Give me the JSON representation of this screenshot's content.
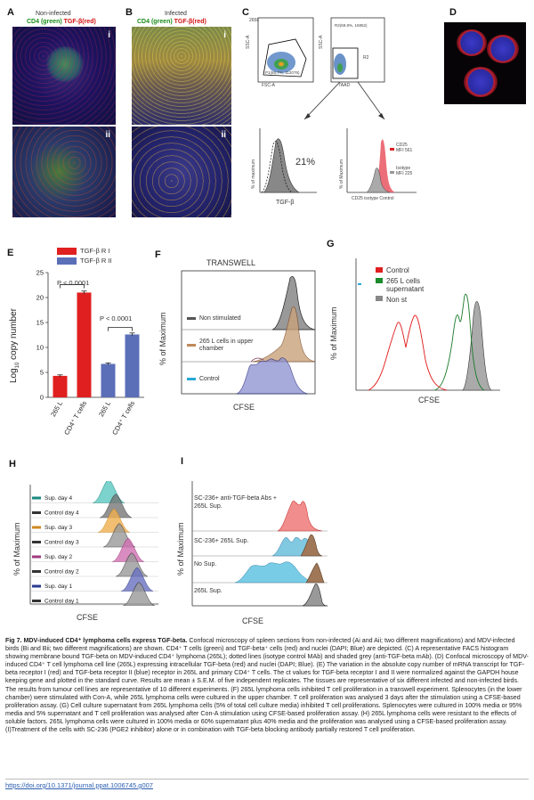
{
  "panels": {
    "A": {
      "letter": "A",
      "title": "Non-infected",
      "legend_cd4": "CD4 (green)",
      "legend_tgf": "TGF-β(red)",
      "sub_i": "i",
      "sub_ii": "ii"
    },
    "B": {
      "letter": "B",
      "title": "Infected",
      "legend_cd4": "CD4 (green)",
      "legend_tgf": "TGF-β(red)",
      "sub_i": "i",
      "sub_ii": "ii"
    },
    "C": {
      "letter": "C",
      "dot1_label": "265L",
      "dot1_y": "SSC-A",
      "dot1_x": "FSC-A",
      "dot1_gate": "P1(65.7%, 112076)",
      "dot2_gate": "R2(69.8%, 16852)",
      "dot2_gate_name": "R2",
      "dot2_y": "SSC-A",
      "dot2_x": "7AAD",
      "hist1_ylabel": "% of maximum",
      "hist1_xlabel": "TGF-β",
      "hist1_pct": "21%",
      "hist2_ylabel": "% of Maximum",
      "hist2_xlabel": "CD25 isotype Control",
      "hist2_leg1": "CD25",
      "hist2_leg1b": "MFI 561",
      "hist2_leg2": "Isotype",
      "hist2_leg2b": "MFI 225"
    },
    "D": {
      "letter": "D"
    },
    "E": {
      "letter": "E",
      "legend": [
        "TGF-β R I",
        "TGF-β R II"
      ],
      "ylabel_a": "Log",
      "ylabel_sub": "10",
      "ylabel_b": " copy  number",
      "pval1": "P < 0.0001",
      "pval2": "P < 0.0001"
    },
    "F": {
      "letter": "F",
      "title": "TRANSWELL",
      "ylabel": "% of Maximum",
      "xlabel": "CFSE",
      "legend": [
        "Non stimulated",
        "265 L cells in upper chamber",
        "Control"
      ]
    },
    "G": {
      "letter": "G",
      "ylabel": "% of Maximum",
      "xlabel": "CFSE",
      "legend": [
        "Control",
        "265 L cells supernatant",
        "Non st"
      ]
    },
    "H": {
      "letter": "H",
      "ylabel": "% of Maximum",
      "xlabel": "CFSE",
      "rows": [
        "Sup. day 4",
        "Control day 4",
        "Sup. day 3",
        "Control day 3",
        "Sup. day 2",
        "Control day 2",
        "Sup. day 1",
        "Control day 1"
      ]
    },
    "I": {
      "letter": "I",
      "ylabel": "% of Maximum",
      "xlabel": "CFSE",
      "rows": [
        "SC-236+ anti-TGF-beta Abs + 265L Sup.",
        "SC-236+ 265L Sup.",
        "No Sup.",
        "265L Sup."
      ]
    }
  },
  "chart_data": {
    "type": "bar",
    "categories": [
      "265 L",
      "CD4⁺ T cells",
      "265 L",
      "CD4⁺ T cells"
    ],
    "series": [
      {
        "name": "TGF-β R I",
        "values": [
          4.3,
          21.0,
          null,
          null
        ],
        "errors": [
          0.2,
          0.3,
          null,
          null
        ],
        "color": "#e02020"
      },
      {
        "name": "TGF-β R II",
        "values": [
          null,
          null,
          6.7,
          12.6
        ],
        "errors": [
          null,
          null,
          0.2,
          0.3
        ],
        "color": "#5b6fb8"
      }
    ],
    "yticks": [
      0,
      5,
      10,
      15,
      20,
      25
    ],
    "ylim": [
      0,
      25
    ],
    "ylabel": "Log10 copy number",
    "title": ""
  },
  "caption": {
    "title": "Fig 7. MDV-induced CD4⁺ lymphoma cells express TGF-beta.",
    "body": "Confocal microscopy of spleen sections from non-infected (Ai and Aii; two different magnifications) and MDV-infected birds (Bi and Bii; two different magnifications) are shown. CD4⁺ T cells (green) and TGF-beta⁺ cells (red) and nuclei (DAPI; Blue) are depicted. (C) A representative FACS histogram showing membrane bound TGF-beta on MDV-induced CD4⁺ lymphoma (265L); dotted lines (isotype control MAb) and shaded grey (anti-TGF-beta mAb). (D) Confocal microscopy of MDV-induced CD4⁺ T cell lymphoma cell line (265L) expressing intracellular TGF-beta (red) and nuclei (DAPI; Blue). (E) The variation in the absolute copy number of mRNA transcript for TGF-beta receptor I (red) and TGF-beta receptor II (blue) receptor in 265L and primary CD4⁺ T cells. The ct values for TGF-beta receptor I and II were normalized against the GAPDH house keeping gene and plotted in the standard curve. Results are mean ± S.E.M. of five independent replicates. The tissues are representative of six different infected and non-infected birds. The results from tumour cell lines are representative of 10 different experiments. (F) 265L lymphoma cells inhibited T cell proliferation in a transwell experiment. Splenocytes (in the lower chamber) were stimulated with Con-A, while 265L lymphoma cells were cultured in the upper chamber. T cell proliferation was analysed 3 days after the stimulation using a CFSE-based proliferation assay. (G) Cell culture supernatant from 265L lymphoma cells (5% of total cell culture media) inhibited T cell proliferations. Splenocytes were cultured in 100% media or 95% media and 5% supernatant and T cell proliferation was analysed after Con-A stimulation using CFSE-based proliferation assay. (H) 265L lymphoma cells were resistant to the effects of soluble factors. 265L lymphoma cells were cultured in 100% media or 60% supernatant plus 40% media and the proliferation was analysed using a CFSE-based proliferation assay. (I)Treatment of the cells with SC-236 (PGE2 inhibitor) alone or in combination with TGF-beta blocking antibody partially restored T cell proliferation."
  },
  "doi": "https://doi.org/10.1371/journal.ppat.1006745.g007"
}
